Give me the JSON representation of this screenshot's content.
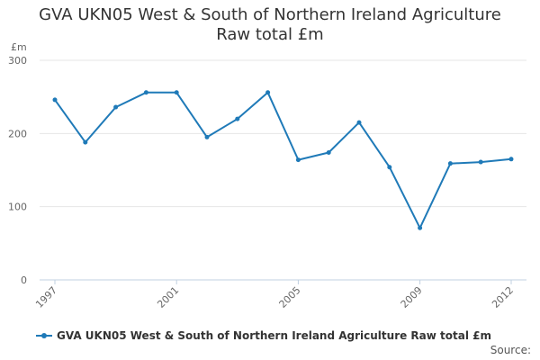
{
  "chart_data": {
    "type": "line",
    "title_lines": [
      "GVA UKN05 West & South of Northern Ireland Agriculture",
      "Raw total £m"
    ],
    "ylabel": "£m",
    "xlabel": "",
    "x": [
      1997,
      1998,
      1999,
      2000,
      2001,
      2002,
      2003,
      2004,
      2005,
      2006,
      2007,
      2008,
      2009,
      2010,
      2011,
      2012
    ],
    "xtick_labels": [
      "1997",
      "2001",
      "2005",
      "2009",
      "2012"
    ],
    "ytick_labels": [
      "0",
      "100",
      "200",
      "300"
    ],
    "ylim": [
      0,
      300
    ],
    "series": [
      {
        "name": "GVA UKN05 West & South of Northern Ireland Agriculture Raw total £m",
        "color": "#1f7ab8",
        "values": [
          246,
          188,
          236,
          256,
          256,
          195,
          220,
          256,
          164,
          174,
          215,
          154,
          71,
          159,
          161,
          165
        ]
      }
    ],
    "grid": true,
    "legend_position": "bottom-left"
  },
  "source_label": "Source:"
}
